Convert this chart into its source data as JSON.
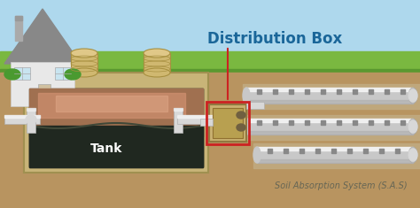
{
  "title": "Distribution Box",
  "sas_label": "Soil Absorption System (S.A.S)",
  "tank_label": "Tank",
  "sky_color": "#aed8ed",
  "grass_color": "#7ab840",
  "grass_dark": "#5a9830",
  "soil_color": "#b89460",
  "soil_dark": "#9a7840",
  "tank_outer_color": "#c8b478",
  "tank_outer_edge": "#a09050",
  "tank_inner_dark_top": "#3a3020",
  "tank_inner_dark_bot": "#1a1810",
  "tank_scum_color": "#c07850",
  "tank_scum_light": "#e0a080",
  "tank_scum_pink": "#d89080",
  "lid_color": "#d0b870",
  "lid_edge": "#a89040",
  "pipe_color": "#d8d8d8",
  "pipe_edge": "#b0b0b0",
  "pipe_highlight": "#f4f4f4",
  "dist_box_color": "#c8b070",
  "dist_box_edge": "#907840",
  "gravel_color": "#c0aa80",
  "gravel_dot": "#a09060",
  "title_color": "#1a6699",
  "label_color": "#666655",
  "red_color": "#cc2222",
  "white": "#ffffff",
  "figsize": [
    4.74,
    2.35
  ],
  "dpi": 100
}
